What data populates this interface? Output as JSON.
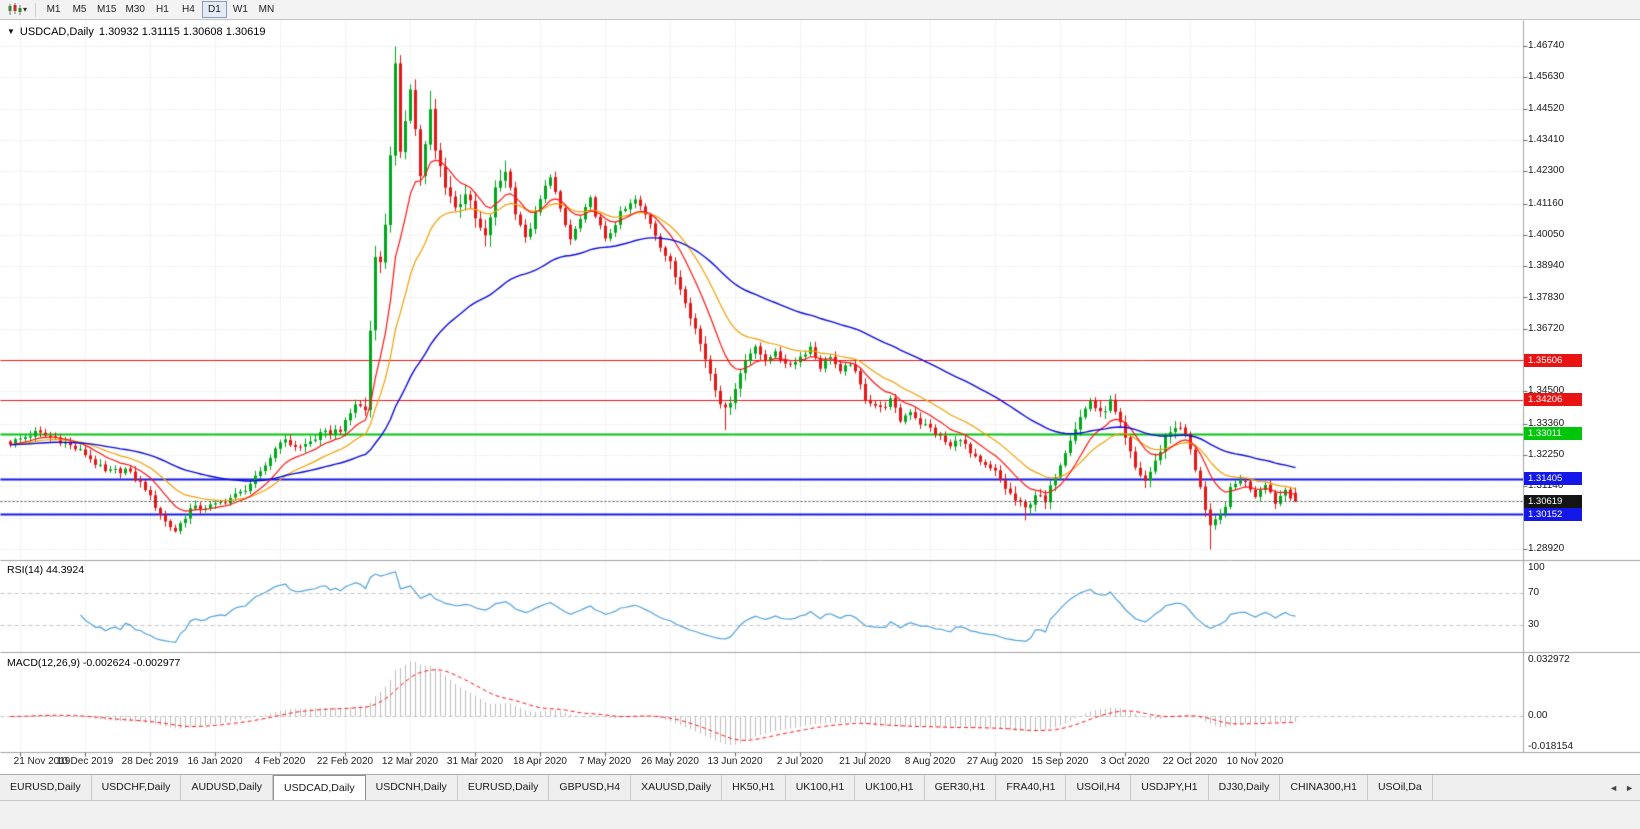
{
  "toolbar": {
    "periods": [
      "M1",
      "M5",
      "M15",
      "M30",
      "H1",
      "H4",
      "D1",
      "W1",
      "MN"
    ],
    "active_period": "D1"
  },
  "chart": {
    "symbol_title": "USDCAD,Daily",
    "ohlc_text": "1.30932 1.31115 1.30608 1.30619"
  },
  "rsi": {
    "name": "RSI(14)",
    "value": "44.3924",
    "axis": [
      {
        "label": "100",
        "value": 100
      },
      {
        "label": "70",
        "value": 70
      },
      {
        "label": "30",
        "value": 30
      }
    ],
    "levels": [
      70,
      30
    ],
    "color": "#53a2dc"
  },
  "macd": {
    "name": "MACD(12,26,9)",
    "values": "-0.002624 -0.002977",
    "axis": [
      {
        "label": "0.032972",
        "value": 0.032972
      },
      {
        "label": "0.00",
        "value": 0
      },
      {
        "label": "-0.018154",
        "value": -0.018154
      }
    ],
    "histogram_color": "#bdbdbd",
    "signal_color": "#ff1414"
  },
  "price_axis": {
    "ticks": [
      "1.46740",
      "1.45630",
      "1.44520",
      "1.43410",
      "1.42300",
      "1.41160",
      "1.40050",
      "1.38940",
      "1.37830",
      "1.36720",
      "1.34500",
      "1.33360",
      "1.32250",
      "1.31140",
      "1.28920"
    ]
  },
  "tabs": {
    "items": [
      "EURUSD,Daily",
      "USDCHF,Daily",
      "AUDUSD,Daily",
      "USDCAD,Daily",
      "USDCNH,Daily",
      "EURUSD,Daily",
      "GBPUSD,H4",
      "XAUUSD,Daily",
      "HK50,H1",
      "UK100,H1",
      "UK100,H1",
      "GER30,H1",
      "FRA40,H1",
      "USOil,H4",
      "USDJPY,H1",
      "DJ30,Daily",
      "CHINA300,H1",
      "USOil,Da"
    ],
    "active_index": 3,
    "scroll_left_glyph": "◄",
    "scroll_right_glyph": "►"
  },
  "chart_data": {
    "type": "candlestick",
    "symbol": "USDCAD",
    "timeframe": "Daily",
    "current": {
      "o": 1.30932,
      "h": 1.31115,
      "l": 1.30608,
      "c": 1.30619
    },
    "y_range": [
      1.2892,
      1.4674
    ],
    "grid_prices": [
      1.4674,
      1.4563,
      1.4452,
      1.4341,
      1.423,
      1.4116,
      1.4005,
      1.3894,
      1.3783,
      1.3672,
      1.3561,
      1.345,
      1.3336,
      1.3225,
      1.3114,
      1.3003,
      1.2892
    ],
    "x_labels": [
      "21 Nov 2019",
      "10 Dec 2019",
      "28 Dec 2019",
      "16 Jan 2020",
      "4 Feb 2020",
      "22 Feb 2020",
      "12 Mar 2020",
      "31 Mar 2020",
      "18 Apr 2020",
      "7 May 2020",
      "26 May 2020",
      "13 Jun 2020",
      "2 Jul 2020",
      "21 Jul 2020",
      "8 Aug 2020",
      "27 Aug 2020",
      "15 Sep 2020",
      "3 Oct 2020",
      "22 Oct 2020",
      "10 Nov 2020"
    ],
    "candle_count": 258,
    "anchors": [
      [
        0,
        1.327
      ],
      [
        5,
        1.3305
      ],
      [
        9,
        1.3288
      ],
      [
        15,
        1.323
      ],
      [
        19,
        1.3165
      ],
      [
        23,
        1.3175
      ],
      [
        27,
        1.311
      ],
      [
        28,
        1.3075
      ],
      [
        31,
        1.299
      ],
      [
        33,
        1.2958
      ],
      [
        36,
        1.3035
      ],
      [
        41,
        1.3048
      ],
      [
        46,
        1.3092
      ],
      [
        50,
        1.316
      ],
      [
        54,
        1.328
      ],
      [
        58,
        1.3252
      ],
      [
        62,
        1.3298
      ],
      [
        66,
        1.3318
      ],
      [
        67,
        1.334
      ],
      [
        69,
        1.3408
      ],
      [
        71,
        1.3388
      ],
      [
        73,
        1.395
      ],
      [
        74,
        1.39
      ],
      [
        75,
        1.405
      ],
      [
        76,
        1.43
      ],
      [
        77,
        1.46
      ],
      [
        78,
        1.428
      ],
      [
        79,
        1.442
      ],
      [
        80,
        1.454
      ],
      [
        81,
        1.438
      ],
      [
        82,
        1.422
      ],
      [
        83,
        1.432
      ],
      [
        84,
        1.444
      ],
      [
        85,
        1.43
      ],
      [
        87,
        1.419
      ],
      [
        89,
        1.41
      ],
      [
        91,
        1.416
      ],
      [
        93,
        1.406
      ],
      [
        95,
        1.399
      ],
      [
        97,
        1.416
      ],
      [
        99,
        1.424
      ],
      [
        101,
        1.41
      ],
      [
        103,
        1.399
      ],
      [
        105,
        1.408
      ],
      [
        106,
        1.413
      ],
      [
        108,
        1.422
      ],
      [
        110,
        1.409
      ],
      [
        112,
        1.399
      ],
      [
        114,
        1.406
      ],
      [
        116,
        1.413
      ],
      [
        119,
        1.3985
      ],
      [
        122,
        1.408
      ],
      [
        125,
        1.413
      ],
      [
        128,
        1.405
      ],
      [
        130,
        1.397
      ],
      [
        132,
        1.39
      ],
      [
        135,
        1.378
      ],
      [
        138,
        1.362
      ],
      [
        140,
        1.352
      ],
      [
        142,
        1.342
      ],
      [
        143,
        1.338
      ],
      [
        145,
        1.347
      ],
      [
        147,
        1.356
      ],
      [
        149,
        1.362
      ],
      [
        151,
        1.355
      ],
      [
        153,
        1.36
      ],
      [
        155,
        1.354
      ],
      [
        158,
        1.3575
      ],
      [
        160,
        1.361
      ],
      [
        162,
        1.354
      ],
      [
        164,
        1.358
      ],
      [
        166,
        1.3515
      ],
      [
        168,
        1.3555
      ],
      [
        171,
        1.343
      ],
      [
        174,
        1.339
      ],
      [
        176,
        1.342
      ],
      [
        178,
        1.335
      ],
      [
        180,
        1.3385
      ],
      [
        182,
        1.334
      ],
      [
        184,
        1.332
      ],
      [
        186,
        1.329
      ],
      [
        188,
        1.3255
      ],
      [
        190,
        1.329
      ],
      [
        192,
        1.323
      ],
      [
        194,
        1.3195
      ],
      [
        197,
        1.3165
      ],
      [
        199,
        1.311
      ],
      [
        201,
        1.3065
      ],
      [
        203,
        1.3035
      ],
      [
        205,
        1.309
      ],
      [
        207,
        1.3055
      ],
      [
        209,
        1.316
      ],
      [
        210,
        1.32
      ],
      [
        212,
        1.329
      ],
      [
        214,
        1.336
      ],
      [
        216,
        1.342
      ],
      [
        218,
        1.337
      ],
      [
        220,
        1.3415
      ],
      [
        222,
        1.333
      ],
      [
        223,
        1.328
      ],
      [
        225,
        1.318
      ],
      [
        227,
        1.3135
      ],
      [
        229,
        1.32
      ],
      [
        231,
        1.329
      ],
      [
        233,
        1.333
      ],
      [
        235,
        1.33
      ],
      [
        236,
        1.324
      ],
      [
        238,
        1.312
      ],
      [
        239,
        1.303
      ],
      [
        240,
        1.2965
      ],
      [
        242,
        1.301
      ],
      [
        244,
        1.31
      ],
      [
        246,
        1.3145
      ],
      [
        248,
        1.311
      ],
      [
        249,
        1.3085
      ],
      [
        251,
        1.313
      ],
      [
        253,
        1.306
      ],
      [
        255,
        1.3105
      ],
      [
        257,
        1.30619
      ]
    ],
    "volatility_zones": [
      [
        71,
        101,
        2.0
      ],
      [
        132,
        147,
        1.5
      ],
      [
        199,
        247,
        1.25
      ]
    ],
    "special_highs": {
      "77": 1.4674,
      "84": 1.4517
    },
    "special_lows": {
      "33": 1.2952,
      "143": 1.3315,
      "203": 1.2995,
      "240": 1.2892
    },
    "moving_averages": [
      {
        "period": 10,
        "color": "#ff1414"
      },
      {
        "period": 20,
        "color": "#f0a000"
      },
      {
        "period": 55,
        "color": "#0a0adc"
      }
    ],
    "levels": [
      {
        "label": "1.35606",
        "value": 1.35606,
        "color": "#e81414",
        "width": 1,
        "style": "solid",
        "badge_bg": "#e81414"
      },
      {
        "label": "1.34206",
        "value": 1.34206,
        "color": "#e81414",
        "width": 1,
        "style": "solid",
        "badge_bg": "#e81414"
      },
      {
        "label": "1.33011",
        "value": 1.33011,
        "color": "#00c60a",
        "width": 2,
        "style": "solid",
        "badge_bg": "#00c60a"
      },
      {
        "label": "1.31405",
        "value": 1.31405,
        "color": "#1318e8",
        "width": 2,
        "style": "solid",
        "badge_bg": "#1318e8"
      },
      {
        "label": "1.30619",
        "value": 1.30619,
        "color": "#4a4a4a",
        "width": 1,
        "style": "dashed",
        "badge_bg": "#151515"
      },
      {
        "label": "1.30152",
        "value": 1.30152,
        "color": "#1318e8",
        "width": 2,
        "style": "solid",
        "badge_bg": "#1318e8"
      }
    ],
    "candle_up_color": "#00a71c",
    "candle_down_color": "#e41616",
    "rsi": {
      "period": 14,
      "current": 44.3924
    },
    "macd": {
      "fast": 12,
      "slow": 26,
      "signal": 9,
      "current": [
        -0.002624,
        -0.002977
      ]
    }
  }
}
